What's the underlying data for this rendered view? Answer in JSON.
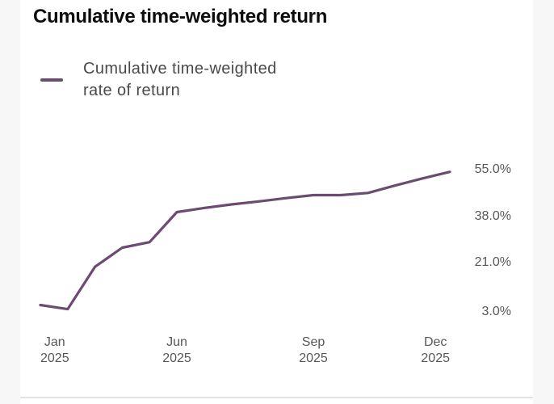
{
  "header": {
    "title": "Cumulative time-weighted return"
  },
  "legend": {
    "label": "Cumulative time-weighted rate of return"
  },
  "colors": {
    "line": "#6D4A71",
    "title_text": "#0D0D0E",
    "legend_text": "#4A4A4D",
    "axis_text": "#57575A",
    "card_bg": "#FFFFFF",
    "page_bg": "#F7F7F8",
    "divider": "#E2E2E4"
  },
  "chart_data": {
    "type": "line",
    "title": "Cumulative time-weighted return",
    "series": [
      {
        "name": "Cumulative time-weighted rate of return",
        "color": "#6D4A71",
        "values": [
          5.5,
          4.0,
          19.5,
          26.5,
          28.5,
          39.5,
          41.0,
          42.3,
          43.4,
          44.6,
          45.7,
          45.7,
          46.5,
          49.2,
          51.8,
          54.2
        ]
      }
    ],
    "x_ticks": [
      {
        "month": "Jan",
        "year": "2025",
        "index": 0,
        "anchor": "start"
      },
      {
        "month": "Jun",
        "year": "2025",
        "index": 5,
        "anchor": "middle"
      },
      {
        "month": "Sep",
        "year": "2025",
        "index": 10,
        "anchor": "middle"
      },
      {
        "month": "Dec",
        "year": "2025",
        "index": 15,
        "anchor": "end"
      }
    ],
    "y_ticks": [
      {
        "label": "55.0%",
        "value": 55.0
      },
      {
        "label": "38.0%",
        "value": 38.0
      },
      {
        "label": "21.0%",
        "value": 21.0
      },
      {
        "label": "3.0%",
        "value": 3.0
      }
    ],
    "xlabel": "",
    "ylabel": "",
    "unit": "%",
    "ylim": [
      0,
      58
    ],
    "grid": false,
    "markers": false,
    "legend_position": "top-left",
    "y_axis_side": "right"
  }
}
